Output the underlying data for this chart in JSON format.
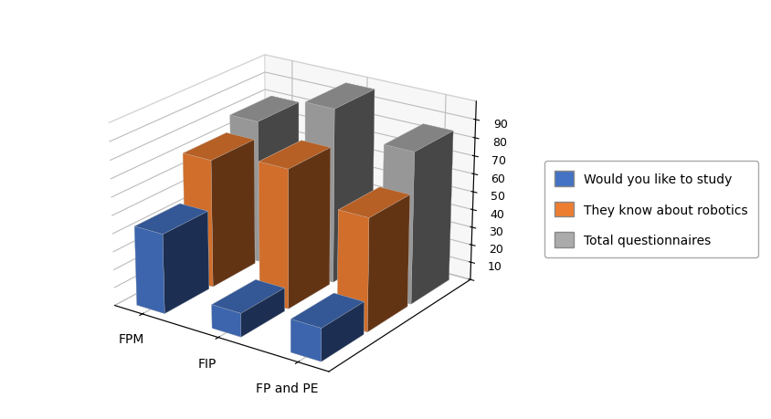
{
  "categories": [
    "FPM",
    "FIP",
    "FP and PE"
  ],
  "series": [
    {
      "label": "Would you like to study",
      "color": "#4472C4",
      "values": [
        44,
        13,
        18
      ]
    },
    {
      "label": "They know about robotics",
      "color": "#ED7D31",
      "values": [
        71,
        77,
        62
      ]
    },
    {
      "label": "Total questionnaires",
      "color": "#ABABAB",
      "values": [
        80,
        97,
        84
      ]
    }
  ],
  "ylim": [
    0,
    100
  ],
  "yticks": [
    0,
    10,
    20,
    30,
    40,
    50,
    60,
    70,
    80,
    90
  ],
  "background_color": "#ffffff",
  "bar_width": 0.6,
  "bar_depth": 0.55,
  "elev": 22,
  "azim": -55
}
